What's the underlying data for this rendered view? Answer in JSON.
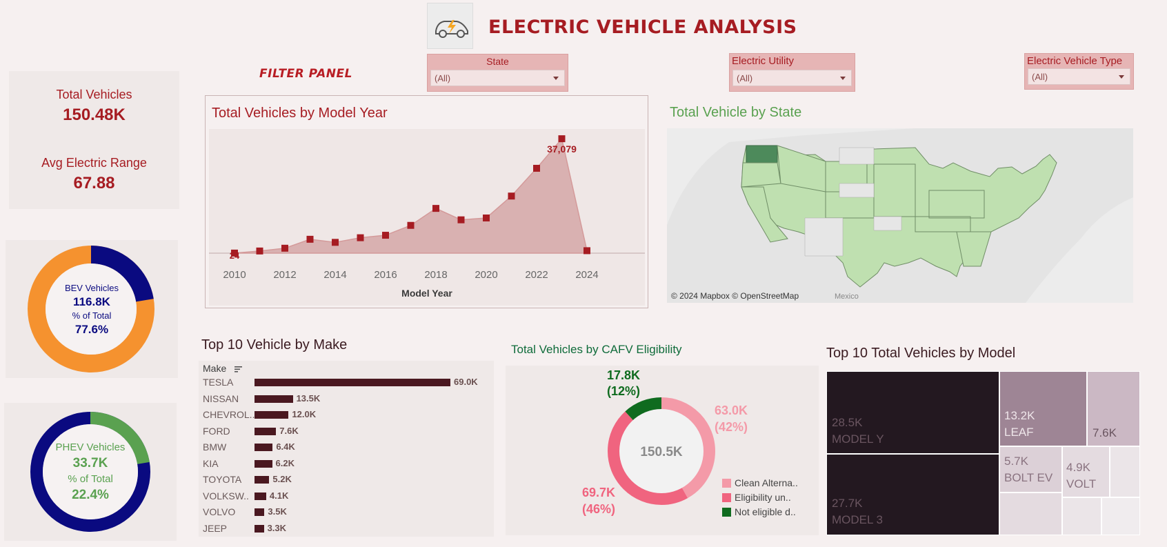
{
  "header": {
    "title": "ELECTRIC VEHICLE ANALYSIS",
    "filter_panel_label": "FILTER PANEL"
  },
  "filters": [
    {
      "label": "State",
      "value": "(All)"
    },
    {
      "label": "Electric Utility",
      "value": "(All)"
    },
    {
      "label": "Electric Vehicle Type",
      "value": "(All)"
    }
  ],
  "kpis": {
    "total_label": "Total Vehicles",
    "total_value": "150.48K",
    "range_label": "Avg Electric Range",
    "range_value": "67.88"
  },
  "bev": {
    "label": "BEV Vehicles",
    "value": "116.8K",
    "pct_label": "% of Total",
    "pct": "77.6%",
    "fraction": 0.776
  },
  "phev": {
    "label": "PHEV Vehicles",
    "value": "33.7K",
    "pct_label": "% of Total",
    "pct": "22.4%",
    "fraction": 0.224
  },
  "colors": {
    "accent": "#a61c22",
    "bev_orange": "#f5922f",
    "navy": "#0a0a80",
    "phev_green": "#5aa150",
    "area_fill": "#d9b1b1",
    "marker": "#a61c22",
    "map_green": "#bfe0b0",
    "map_wa": "#4d8a5b",
    "cafv_light": "#f49aa8",
    "cafv_mid": "#f0647f",
    "cafv_green": "#0f6b1f"
  },
  "model_year_chart": {
    "title": "Total Vehicles by Model Year",
    "xlabel": "Model Year",
    "peak_label": "37,079",
    "low_label": "24",
    "chart_data": {
      "type": "area",
      "x": [
        2010,
        2011,
        2012,
        2013,
        2014,
        2015,
        2016,
        2017,
        2018,
        2019,
        2020,
        2021,
        2022,
        2023,
        2024
      ],
      "values": [
        24,
        700,
        1600,
        4500,
        3500,
        5000,
        5800,
        9000,
        14500,
        10800,
        11400,
        18500,
        27500,
        37079,
        800
      ],
      "xticks": [
        "2010",
        "2012",
        "2014",
        "2016",
        "2018",
        "2020",
        "2022",
        "2024"
      ],
      "ylim": [
        0,
        38000
      ]
    }
  },
  "map": {
    "title": "Total Vehicle by State",
    "attribution": "© 2024 Mapbox © OpenStreetMap",
    "mexico_label": "Mexico"
  },
  "make_chart": {
    "title": "Top 10 Vehicle by Make",
    "column_header": "Make",
    "chart_data": {
      "type": "bar",
      "categories": [
        "TESLA",
        "NISSAN",
        "CHEVROL..",
        "FORD",
        "BMW",
        "KIA",
        "TOYOTA",
        "VOLKSW..",
        "VOLVO",
        "JEEP"
      ],
      "values": [
        69.0,
        13.5,
        12.0,
        7.6,
        6.4,
        6.2,
        5.2,
        4.1,
        3.5,
        3.3
      ],
      "labels": [
        "69.0K",
        "13.5K",
        "12.0K",
        "7.6K",
        "6.4K",
        "6.2K",
        "5.2K",
        "4.1K",
        "3.5K",
        "3.3K"
      ]
    }
  },
  "cafv_chart": {
    "title": "Total Vehicles by CAFV Eligibility",
    "center_label": "150.5K",
    "chart_data": {
      "type": "pie",
      "categories": [
        "Clean Alterna..",
        "Eligibility un..",
        "Not eligible d.."
      ],
      "values": [
        63.0,
        69.7,
        17.8
      ],
      "value_labels": [
        "63.0K",
        "69.7K",
        "17.8K"
      ],
      "pct_labels": [
        "(42%)",
        "(46%)",
        "(12%)"
      ]
    }
  },
  "treemap": {
    "title": "Top 10 Total Vehicles by Model",
    "cells": [
      {
        "value": "28.5K",
        "name": "MODEL Y"
      },
      {
        "value": "27.7K",
        "name": "MODEL 3"
      },
      {
        "value": "13.2K",
        "name": "LEAF"
      },
      {
        "value": "7.6K",
        "name": ""
      },
      {
        "value": "5.7K",
        "name": "BOLT EV"
      },
      {
        "value": "4.9K",
        "name": "VOLT"
      }
    ]
  }
}
